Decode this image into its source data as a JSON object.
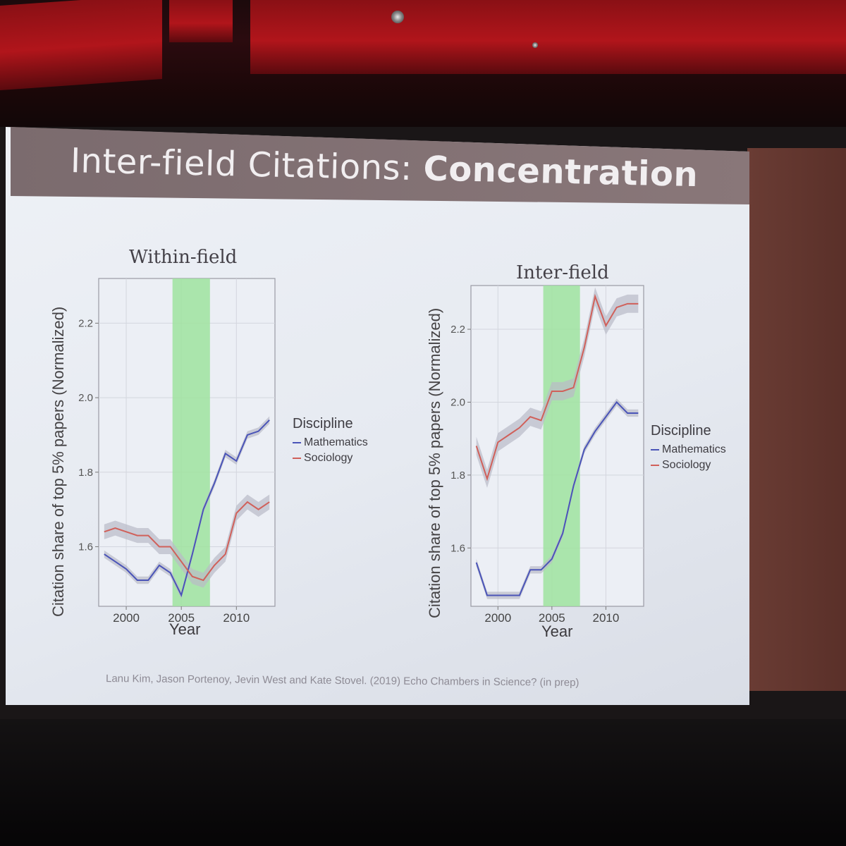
{
  "slide": {
    "title_regular": "Inter-field Citations:",
    "title_bold": "Concentration",
    "citation": "Lanu Kim, Jason Portenoy, Jevin West and Kate Stovel. (2019) Echo Chambers in Science? (in prep)"
  },
  "colors": {
    "mathematics": "#4a54b8",
    "sociology": "#d0605a",
    "band": "#9fe39f",
    "ribbon": "#b9bac8"
  },
  "chart_data": [
    {
      "type": "line",
      "title": "Within-field",
      "xlabel": "Year",
      "ylabel": "Citation share of top 5% papers (Normalized)",
      "xlim": [
        1997.5,
        2013.5
      ],
      "ylim": [
        1.44,
        2.32
      ],
      "xticks": [
        2000,
        2005,
        2010
      ],
      "yticks": [
        1.6,
        1.8,
        2.0,
        2.2
      ],
      "ytick_labels": [
        "1.6",
        "1.8",
        "2.0",
        "2.2"
      ],
      "xtick_labels": [
        "2000",
        "2005",
        "2010"
      ],
      "grid": true,
      "shaded_band": [
        2004.2,
        2007.6
      ],
      "legend_title": "Discipline",
      "legend_position": "right",
      "x": [
        1998,
        1999,
        2000,
        2001,
        2002,
        2003,
        2004,
        2005,
        2006,
        2007,
        2008,
        2009,
        2010,
        2011,
        2012,
        2013
      ],
      "series": [
        {
          "name": "Mathematics",
          "values": [
            1.58,
            1.56,
            1.54,
            1.51,
            1.51,
            1.55,
            1.53,
            1.47,
            1.58,
            1.7,
            1.77,
            1.85,
            1.83,
            1.9,
            1.91,
            1.94
          ],
          "band": 0.01
        },
        {
          "name": "Sociology",
          "values": [
            1.64,
            1.65,
            1.64,
            1.63,
            1.63,
            1.6,
            1.6,
            1.56,
            1.52,
            1.51,
            1.55,
            1.58,
            1.69,
            1.72,
            1.7,
            1.72
          ],
          "band": 0.02
        }
      ]
    },
    {
      "type": "line",
      "title": "Inter-field",
      "xlabel": "Year",
      "ylabel": "Citation share of top 5% papers (Normalized)",
      "xlim": [
        1997.5,
        2013.5
      ],
      "ylim": [
        1.44,
        2.32
      ],
      "xticks": [
        2000,
        2005,
        2010
      ],
      "yticks": [
        1.6,
        1.8,
        2.0,
        2.2
      ],
      "ytick_labels": [
        "1.6",
        "1.8",
        "2.0",
        "2.2"
      ],
      "xtick_labels": [
        "2000",
        "2005",
        "2010"
      ],
      "grid": true,
      "shaded_band": [
        2004.2,
        2007.6
      ],
      "legend_title": "Discipline",
      "legend_position": "right",
      "x": [
        1998,
        1999,
        2000,
        2001,
        2002,
        2003,
        2004,
        2005,
        2006,
        2007,
        2008,
        2009,
        2010,
        2011,
        2012,
        2013
      ],
      "series": [
        {
          "name": "Mathematics",
          "values": [
            1.56,
            1.47,
            1.47,
            1.47,
            1.47,
            1.54,
            1.54,
            1.57,
            1.64,
            1.77,
            1.87,
            1.92,
            1.96,
            2.0,
            1.97,
            1.97
          ],
          "band": 0.01
        },
        {
          "name": "Sociology",
          "values": [
            1.88,
            1.79,
            1.89,
            1.91,
            1.93,
            1.96,
            1.95,
            2.03,
            2.03,
            2.04,
            2.15,
            2.29,
            2.21,
            2.26,
            2.27,
            2.27
          ],
          "band": 0.025
        }
      ]
    }
  ]
}
